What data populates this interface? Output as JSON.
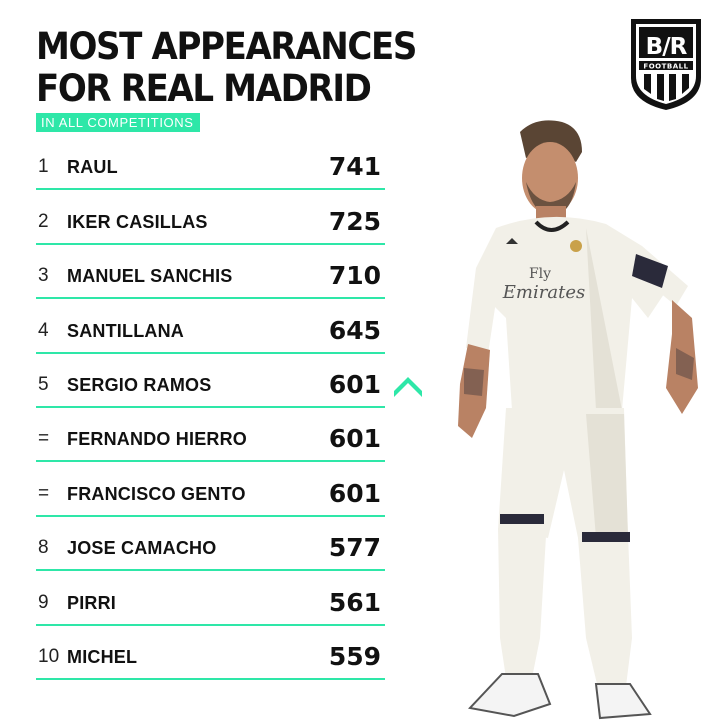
{
  "header": {
    "title_line1": "MOST APPEARANCES",
    "title_line2": "FOR REAL MADRID",
    "subtitle": "IN ALL COMPETITIONS"
  },
  "logo": {
    "text": "B/R",
    "subtext": "FOOTBALL",
    "icon": "bleacher-report-football-shield"
  },
  "colors": {
    "accent": "#2ee7a8",
    "text": "#111111",
    "background": "#ffffff"
  },
  "rows": [
    {
      "rank": "1",
      "name": "RAUL",
      "value": "741"
    },
    {
      "rank": "2",
      "name": "IKER CASILLAS",
      "value": "725"
    },
    {
      "rank": "3",
      "name": "MANUEL SANCHIS",
      "value": "710"
    },
    {
      "rank": "4",
      "name": "SANTILLANA",
      "value": "645"
    },
    {
      "rank": "5",
      "name": "SERGIO RAMOS",
      "value": "601",
      "trend": "up-chevron-icon"
    },
    {
      "rank": "=",
      "name": "FERNANDO HIERRO",
      "value": "601"
    },
    {
      "rank": "=",
      "name": "FRANCISCO GENTO",
      "value": "601"
    },
    {
      "rank": "8",
      "name": "JOSE CAMACHO",
      "value": "577"
    },
    {
      "rank": "9",
      "name": "PIRRI",
      "value": "561"
    },
    {
      "rank": "10",
      "name": "MICHEL",
      "value": "559"
    }
  ],
  "player_image": {
    "icon": "player-photo",
    "shirt_text_1": "Fly",
    "shirt_text_2": "Emirates"
  }
}
